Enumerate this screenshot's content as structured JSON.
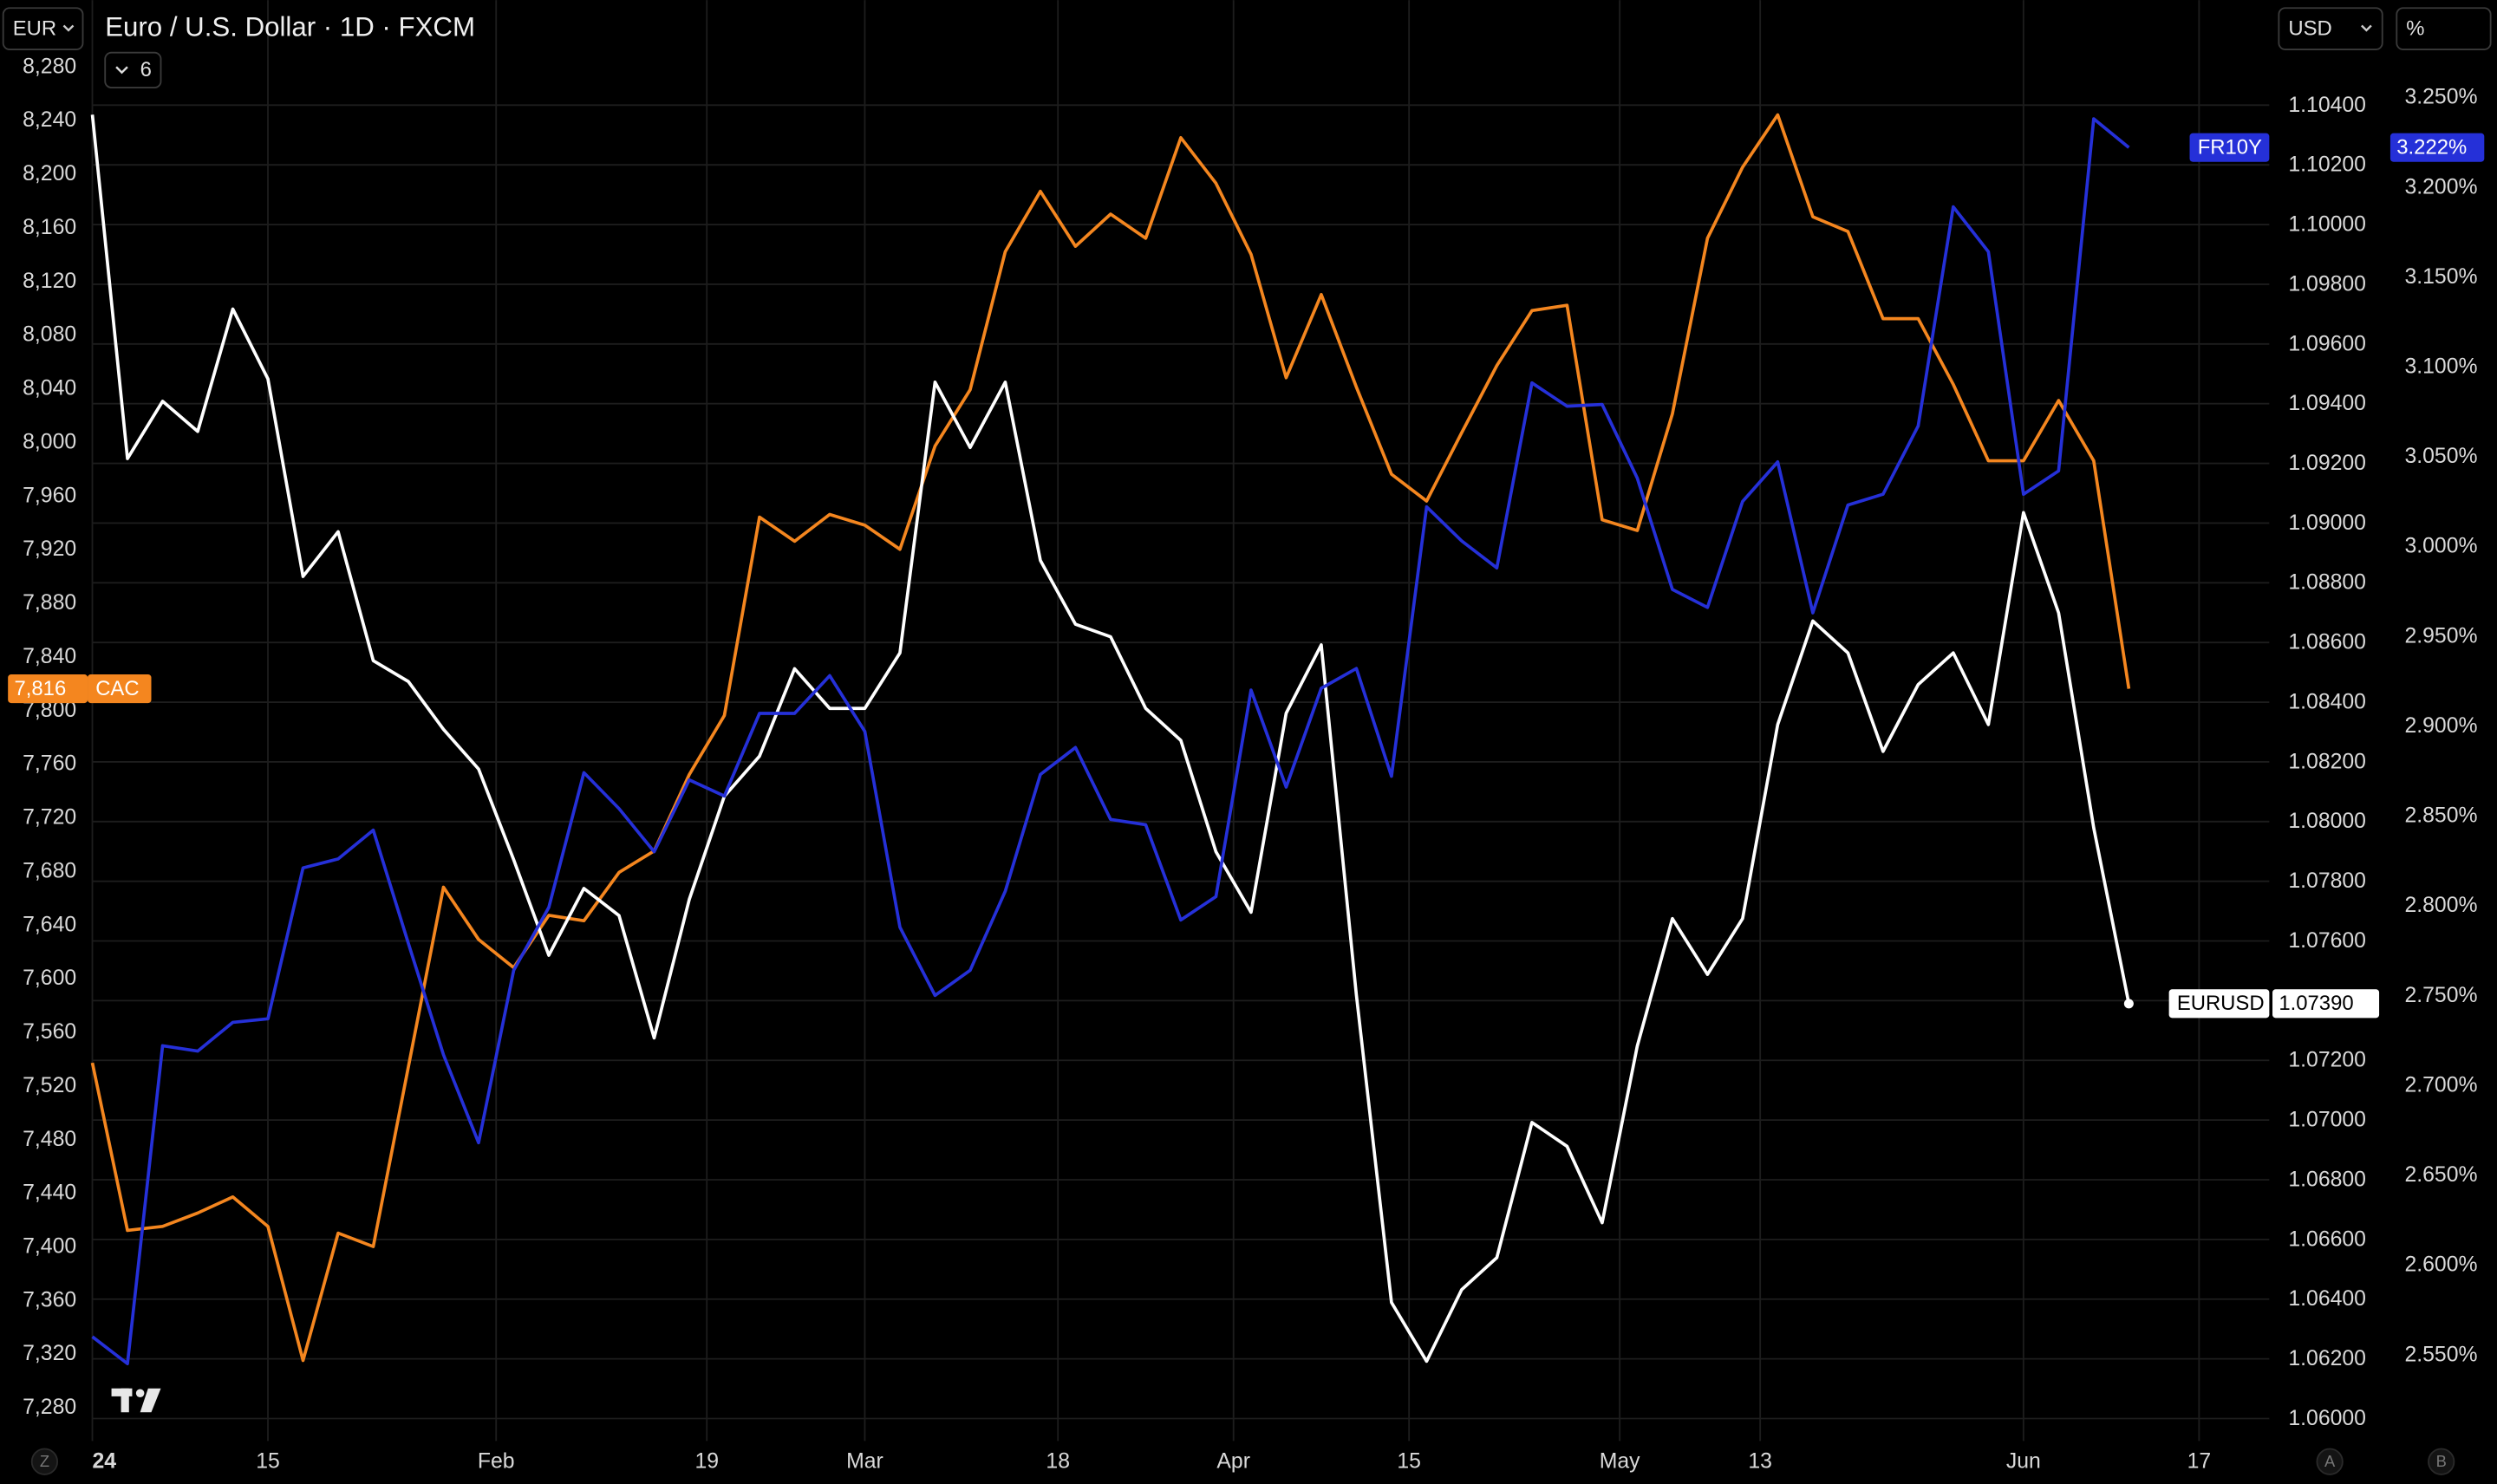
{
  "chart_data": {
    "type": "line",
    "title": "Euro / U.S. Dollar · 1D · FXCM",
    "x": [
      "2024-01-01",
      "2024-01-03",
      "2024-01-05",
      "2024-01-09",
      "2024-01-11",
      "2024-01-15",
      "2024-01-17",
      "2024-01-19",
      "2024-01-23",
      "2024-01-25",
      "2024-01-29",
      "2024-01-31",
      "2024-02-02",
      "2024-02-06",
      "2024-02-08",
      "2024-02-12",
      "2024-02-14",
      "2024-02-16",
      "2024-02-20",
      "2024-02-22",
      "2024-02-26",
      "2024-02-28",
      "2024-03-01",
      "2024-03-05",
      "2024-03-07",
      "2024-03-11",
      "2024-03-13",
      "2024-03-15",
      "2024-03-19",
      "2024-03-21",
      "2024-03-25",
      "2024-03-27",
      "2024-03-29",
      "2024-04-02",
      "2024-04-04",
      "2024-04-08",
      "2024-04-10",
      "2024-04-12",
      "2024-04-16",
      "2024-04-18",
      "2024-04-22",
      "2024-04-24",
      "2024-04-26",
      "2024-04-30",
      "2024-05-02",
      "2024-05-06",
      "2024-05-08",
      "2024-05-10",
      "2024-05-14",
      "2024-05-16",
      "2024-05-20",
      "2024-05-22",
      "2024-05-24",
      "2024-05-28",
      "2024-05-30",
      "2024-06-03",
      "2024-06-05",
      "2024-06-07",
      "2024-06-11"
    ],
    "xlim": [
      "2024-01-01",
      "2024-06-21"
    ],
    "xticks": [
      {
        "value": "2024-01-01",
        "label": "24"
      },
      {
        "value": "2024-01-15",
        "label": "15"
      },
      {
        "value": "2024-02-01",
        "label": "Feb"
      },
      {
        "value": "2024-02-19",
        "label": "19"
      },
      {
        "value": "2024-03-01",
        "label": "Mar"
      },
      {
        "value": "2024-03-18",
        "label": "18"
      },
      {
        "value": "2024-04-01",
        "label": "Apr"
      },
      {
        "value": "2024-04-15",
        "label": "15"
      },
      {
        "value": "2024-05-01",
        "label": "May"
      },
      {
        "value": "2024-05-13",
        "label": "13"
      },
      {
        "value": "2024-06-03",
        "label": "Jun"
      },
      {
        "value": "2024-06-17",
        "label": "17"
      }
    ],
    "series": [
      {
        "name": "CAC",
        "color": "#f4861f",
        "axis": "y",
        "price_label": "7,816",
        "values": [
          7537,
          7412,
          7415,
          7425,
          7437,
          7415,
          7315,
          7410,
          7400,
          7534,
          7668,
          7629,
          7608,
          7647,
          7643,
          7679,
          7695,
          7752,
          7796,
          7944,
          7926,
          7946,
          7938,
          7920,
          7997,
          8039,
          8142,
          8187,
          8146,
          8170,
          8152,
          8227,
          8193,
          8140,
          8048,
          8110,
          8041,
          7976,
          7956,
          8007,
          8057,
          8098,
          8102,
          7942,
          7934,
          8021,
          8152,
          8205,
          8244,
          8168,
          8157,
          8092,
          8092,
          8043,
          7986,
          7986,
          8031,
          7986,
          7816
        ]
      },
      {
        "name": "EURUSD",
        "color": "#ffffff",
        "axis": "y2",
        "price_label": "1.07390",
        "values": [
          1.10368,
          1.09216,
          1.09408,
          1.09307,
          1.09717,
          1.09483,
          1.08821,
          1.08971,
          1.08539,
          1.08469,
          1.08309,
          1.08176,
          1.07872,
          1.07552,
          1.07776,
          1.07685,
          1.07275,
          1.07739,
          1.08085,
          1.08219,
          1.08512,
          1.08379,
          1.08379,
          1.08565,
          1.09472,
          1.09253,
          1.09472,
          1.08875,
          1.08661,
          1.08619,
          1.08379,
          1.08272,
          1.07899,
          1.07696,
          1.08363,
          1.08592,
          1.07419,
          1.06389,
          1.06192,
          1.06432,
          1.06539,
          1.06992,
          1.06912,
          1.06656,
          1.07248,
          1.07675,
          1.07488,
          1.07675,
          1.08325,
          1.08672,
          1.08565,
          1.08235,
          1.08459,
          1.08565,
          1.08325,
          1.09035,
          1.08699,
          1.07979,
          1.0739
        ]
      },
      {
        "name": "FR10Y",
        "color": "#2530d8",
        "axis": "y3",
        "price_label": "3.222%",
        "values": [
          2.56,
          2.545,
          2.722,
          2.719,
          2.735,
          2.737,
          2.821,
          2.826,
          2.842,
          2.779,
          2.717,
          2.668,
          2.764,
          2.799,
          2.874,
          2.854,
          2.83,
          2.87,
          2.861,
          2.907,
          2.907,
          2.928,
          2.897,
          2.788,
          2.75,
          2.764,
          2.808,
          2.873,
          2.888,
          2.848,
          2.845,
          2.792,
          2.805,
          2.92,
          2.866,
          2.921,
          2.932,
          2.872,
          3.022,
          3.003,
          2.988,
          3.091,
          3.078,
          3.079,
          3.038,
          2.976,
          2.966,
          3.025,
          3.047,
          2.963,
          3.023,
          3.029,
          3.067,
          3.189,
          3.164,
          3.029,
          3.042,
          3.238,
          3.222
        ]
      }
    ],
    "ylim": [
      7255,
      8294
    ],
    "yticks": [
      {
        "value": 7280,
        "label": "7,280"
      },
      {
        "value": 7320,
        "label": "7,320"
      },
      {
        "value": 7360,
        "label": "7,360"
      },
      {
        "value": 7400,
        "label": "7,400"
      },
      {
        "value": 7440,
        "label": "7,440"
      },
      {
        "value": 7480,
        "label": "7,480"
      },
      {
        "value": 7520,
        "label": "7,520"
      },
      {
        "value": 7560,
        "label": "7,560"
      },
      {
        "value": 7600,
        "label": "7,600"
      },
      {
        "value": 7640,
        "label": "7,640"
      },
      {
        "value": 7680,
        "label": "7,680"
      },
      {
        "value": 7720,
        "label": "7,720"
      },
      {
        "value": 7760,
        "label": "7,760"
      },
      {
        "value": 7800,
        "label": "7,800"
      },
      {
        "value": 7840,
        "label": "7,840"
      },
      {
        "value": 7880,
        "label": "7,880"
      },
      {
        "value": 7920,
        "label": "7,920"
      },
      {
        "value": 7960,
        "label": "7,960"
      },
      {
        "value": 8000,
        "label": "8,000"
      },
      {
        "value": 8040,
        "label": "8,040"
      },
      {
        "value": 8080,
        "label": "8,080"
      },
      {
        "value": 8120,
        "label": "8,120"
      },
      {
        "value": 8160,
        "label": "8,160"
      },
      {
        "value": 8200,
        "label": "8,200"
      },
      {
        "value": 8240,
        "label": "8,240"
      },
      {
        "value": 8280,
        "label": "8,280"
      }
    ],
    "y2lim": [
      1.05925,
      1.10592
    ],
    "y2ticks": [
      {
        "value": 1.06,
        "label": "1.06000"
      },
      {
        "value": 1.062,
        "label": "1.06200"
      },
      {
        "value": 1.064,
        "label": "1.06400"
      },
      {
        "value": 1.066,
        "label": "1.06600"
      },
      {
        "value": 1.068,
        "label": "1.06800"
      },
      {
        "value": 1.07,
        "label": "1.07000"
      },
      {
        "value": 1.072,
        "label": "1.07200"
      },
      {
        "value": 1.074,
        "label": "1.07400"
      },
      {
        "value": 1.076,
        "label": "1.07600"
      },
      {
        "value": 1.078,
        "label": "1.07800"
      },
      {
        "value": 1.08,
        "label": "1.08000"
      },
      {
        "value": 1.082,
        "label": "1.08200"
      },
      {
        "value": 1.084,
        "label": "1.08400"
      },
      {
        "value": 1.086,
        "label": "1.08600"
      },
      {
        "value": 1.088,
        "label": "1.08800"
      },
      {
        "value": 1.09,
        "label": "1.09000"
      },
      {
        "value": 1.092,
        "label": "1.09200"
      },
      {
        "value": 1.094,
        "label": "1.09400"
      },
      {
        "value": 1.096,
        "label": "1.09600"
      },
      {
        "value": 1.098,
        "label": "1.09800"
      },
      {
        "value": 1.1,
        "label": "1.10000"
      },
      {
        "value": 1.102,
        "label": "1.10200"
      },
      {
        "value": 1.104,
        "label": "1.10400"
      }
    ],
    "y3lim": [
      2.502,
      3.2775
    ],
    "y3ticks": [
      {
        "value": 2.55,
        "label": "2.550%"
      },
      {
        "value": 2.6,
        "label": "2.600%"
      },
      {
        "value": 2.65,
        "label": "2.650%"
      },
      {
        "value": 2.7,
        "label": "2.700%"
      },
      {
        "value": 2.75,
        "label": "2.750%"
      },
      {
        "value": 2.8,
        "label": "2.800%"
      },
      {
        "value": 2.85,
        "label": "2.850%"
      },
      {
        "value": 2.9,
        "label": "2.900%"
      },
      {
        "value": 2.95,
        "label": "2.950%"
      },
      {
        "value": 3.0,
        "label": "3.000%"
      },
      {
        "value": 3.05,
        "label": "3.050%"
      },
      {
        "value": 3.1,
        "label": "3.100%"
      },
      {
        "value": 3.15,
        "label": "3.150%"
      },
      {
        "value": 3.2,
        "label": "3.200%"
      },
      {
        "value": 3.25,
        "label": "3.250%"
      }
    ],
    "grid": [
      "x",
      "y2"
    ]
  },
  "controls": {
    "left_currency": "EUR",
    "indicator_count": "6",
    "right_currency": "USD",
    "percent": "%",
    "bottom_buttons": [
      "Z",
      "A",
      "B"
    ]
  }
}
